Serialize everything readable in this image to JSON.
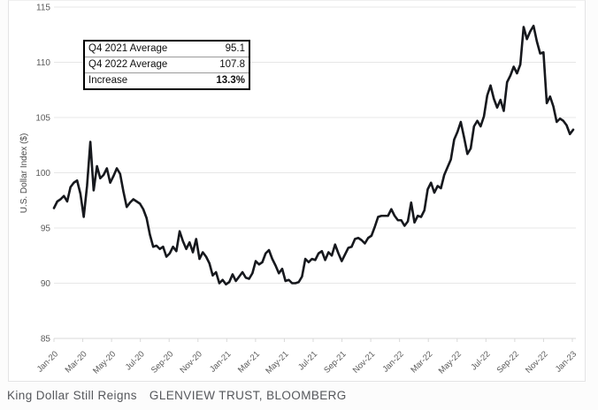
{
  "caption": {
    "title": "King Dollar Still Reigns",
    "source": "GLENVIEW TRUST, BLOOMBERG"
  },
  "chart_data": {
    "type": "line",
    "title": "",
    "xlabel": "",
    "ylabel": "U.S. Dollar Index ($)",
    "ylim": [
      85,
      115
    ],
    "yticks": [
      115,
      110,
      105,
      100,
      95,
      90,
      85
    ],
    "x_tick_labels": [
      "Jan-20",
      "Mar-20",
      "May-20",
      "Jul-20",
      "Sep-20",
      "Nov-20",
      "Jan-21",
      "Mar-21",
      "May-21",
      "Jul-21",
      "Sep-21",
      "Nov-21",
      "Jan-22",
      "Mar-22",
      "May-22",
      "Jul-22",
      "Sep-22",
      "Nov-22",
      "Jan-23"
    ],
    "x_frequency": "weekly",
    "grid": true,
    "legend_position": "none",
    "line_color": "#16181d",
    "gridline_color": "#e7e7e7",
    "axis_line_color": "#d9d9d9",
    "tick_label_color": "#595959",
    "values": [
      96.8,
      97.4,
      97.6,
      97.9,
      97.4,
      98.7,
      99.1,
      99.3,
      98.1,
      96.0,
      98.8,
      102.8,
      98.4,
      100.6,
      99.5,
      99.8,
      100.4,
      99.1,
      99.7,
      100.4,
      99.9,
      98.3,
      96.9,
      97.3,
      97.6,
      97.4,
      97.2,
      96.7,
      95.9,
      94.4,
      93.3,
      93.4,
      93.1,
      93.3,
      92.4,
      92.7,
      93.3,
      92.9,
      94.7,
      93.8,
      93.1,
      93.7,
      92.8,
      94.0,
      92.2,
      92.8,
      92.4,
      91.8,
      90.7,
      91.0,
      90.0,
      90.3,
      89.9,
      90.1,
      90.8,
      90.2,
      90.6,
      91.0,
      90.5,
      90.4,
      90.9,
      92.0,
      91.7,
      91.9,
      92.7,
      93.0,
      92.2,
      91.6,
      90.9,
      91.3,
      90.2,
      90.3,
      90.0,
      90.0,
      90.1,
      90.6,
      92.2,
      91.9,
      92.2,
      92.1,
      92.7,
      92.9,
      92.1,
      92.8,
      92.5,
      93.5,
      92.7,
      92.0,
      92.6,
      93.2,
      93.3,
      94.0,
      94.1,
      93.9,
      93.6,
      94.1,
      94.3,
      95.1,
      96.0,
      96.1,
      96.1,
      96.1,
      96.7,
      96.1,
      95.7,
      95.7,
      95.2,
      95.6,
      97.3,
      95.5,
      96.1,
      96.0,
      96.6,
      98.5,
      99.1,
      98.2,
      98.8,
      98.6,
      99.8,
      100.5,
      101.2,
      103.0,
      103.7,
      104.6,
      103.2,
      101.7,
      102.2,
      104.2,
      104.7,
      104.2,
      105.1,
      107.0,
      107.9,
      106.7,
      105.9,
      106.6,
      105.6,
      108.2,
      108.8,
      109.6,
      109.0,
      109.8,
      113.2,
      112.1,
      112.8,
      113.3,
      111.9,
      110.8,
      110.9,
      106.3,
      106.9,
      106.0,
      104.6,
      104.9,
      104.7,
      104.3,
      103.5,
      103.9
    ],
    "annotation": {
      "rows": [
        {
          "label": "Q4 2021 Average",
          "value": "95.1"
        },
        {
          "label": "Q4 2022 Average",
          "value": "107.8"
        },
        {
          "label": "Increase",
          "value": "13.3%"
        }
      ]
    }
  }
}
